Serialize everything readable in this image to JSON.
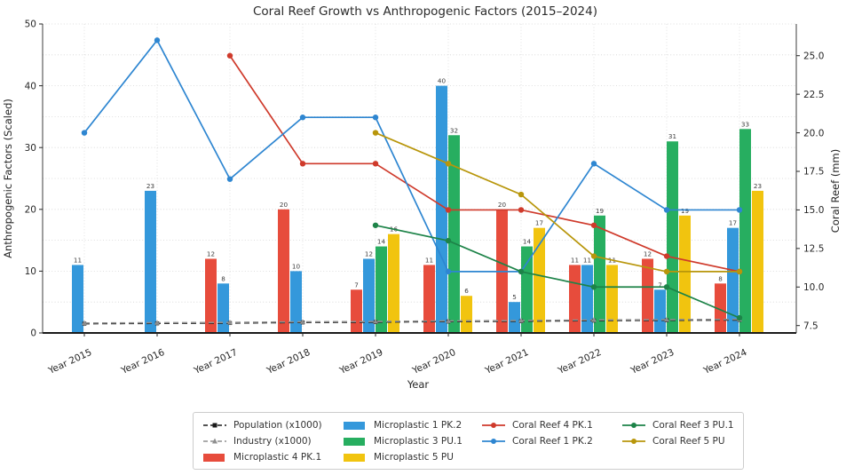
{
  "chart_data": {
    "type": "combo-bar-line",
    "title": "Coral Reef Growth vs Anthropogenic Factors (2015–2024)",
    "xlabel": "Year",
    "ylabel_left": "Anthropogenic Factors (Scaled)",
    "ylabel_right": "Coral Reef (mm)",
    "categories": [
      "Year 2015",
      "Year 2016",
      "Year 2017",
      "Year 2018",
      "Year 2019",
      "Year 2020",
      "Year 2021",
      "Year 2022",
      "Year 2023",
      "Year 2024"
    ],
    "left_axis": {
      "min": 0,
      "max": 50,
      "ticks": [
        0,
        10,
        20,
        30,
        40,
        50
      ],
      "grid_step": 5
    },
    "right_axis": {
      "ticks": [
        7.5,
        10.0,
        12.5,
        15.0,
        17.5,
        20.0,
        22.5,
        25.0
      ]
    },
    "grid": true,
    "legend_position": "bottom-center",
    "bar_series": [
      {
        "name": "Microplastic 4 PK.1",
        "color": "#e74c3c",
        "axis": "left",
        "values": [
          null,
          null,
          12,
          20,
          7,
          11,
          20,
          11,
          12,
          8
        ]
      },
      {
        "name": "Microplastic 1 PK.2",
        "color": "#3498db",
        "axis": "left",
        "values": [
          11,
          23,
          8,
          10,
          12,
          40,
          5,
          11,
          7,
          17
        ]
      },
      {
        "name": "Microplastic 3 PU.1",
        "color": "#27ae60",
        "axis": "left",
        "values": [
          null,
          null,
          null,
          null,
          14,
          32,
          14,
          19,
          31,
          33
        ]
      },
      {
        "name": "Microplastic 5 PU",
        "color": "#f1c40f",
        "axis": "left",
        "values": [
          null,
          null,
          null,
          null,
          16,
          6,
          17,
          11,
          19,
          23
        ]
      }
    ],
    "line_series": [
      {
        "name": "Coral Reef 4 PK.1",
        "color": "#cf3a2b",
        "axis": "right",
        "marker": "circle",
        "values": [
          null,
          null,
          25,
          18,
          18,
          15,
          15,
          14,
          12,
          11
        ]
      },
      {
        "name": "Coral Reef 1 PK.2",
        "color": "#2e86d1",
        "axis": "right",
        "marker": "circle",
        "values": [
          20,
          26,
          17,
          21,
          21,
          11,
          11,
          18,
          15,
          15
        ]
      },
      {
        "name": "Coral Reef 3 PU.1",
        "color": "#1d8348",
        "axis": "right",
        "marker": "circle",
        "values": [
          null,
          null,
          null,
          null,
          14,
          13,
          11,
          10,
          10,
          8
        ]
      },
      {
        "name": "Coral Reef 5 PU",
        "color": "#b8960b",
        "axis": "right",
        "marker": "circle",
        "values": [
          null,
          null,
          null,
          null,
          20,
          18,
          16,
          12,
          11,
          11
        ]
      }
    ],
    "scaled_lines": [
      {
        "name": "Population (x1000)",
        "color": "#1a1a1a",
        "axis": "left",
        "marker": "square",
        "dashed": true,
        "values": [
          1.5,
          1.55,
          1.6,
          1.7,
          1.75,
          1.85,
          1.9,
          2.0,
          2.05,
          2.1
        ]
      },
      {
        "name": "Industry (x1000)",
        "color": "#8f8f8f",
        "axis": "left",
        "marker": "triangle",
        "dashed": true,
        "values": [
          1.6,
          1.65,
          1.7,
          1.8,
          1.85,
          1.95,
          2.0,
          2.1,
          2.15,
          2.2
        ]
      }
    ],
    "legend": {
      "items": [
        {
          "label": "Population (x1000)",
          "color": "#1a1a1a",
          "swatch": "dash-square",
          "col": 1,
          "row": 1
        },
        {
          "label": "Industry (x1000)",
          "color": "#8f8f8f",
          "swatch": "dash-triangle",
          "col": 1,
          "row": 2
        },
        {
          "label": "Microplastic 4 PK.1",
          "color": "#e74c3c",
          "swatch": "rect",
          "col": 1,
          "row": 3
        },
        {
          "label": "Microplastic 1 PK.2",
          "color": "#3498db",
          "swatch": "rect",
          "col": 2,
          "row": 1
        },
        {
          "label": "Microplastic 3 PU.1",
          "color": "#27ae60",
          "swatch": "rect",
          "col": 2,
          "row": 2
        },
        {
          "label": "Microplastic 5 PU",
          "color": "#f1c40f",
          "swatch": "rect",
          "col": 2,
          "row": 3
        },
        {
          "label": "Coral Reef 4 PK.1",
          "color": "#cf3a2b",
          "swatch": "line-dot",
          "col": 3,
          "row": 1
        },
        {
          "label": "Coral Reef 1 PK.2",
          "color": "#2e86d1",
          "swatch": "line-dot",
          "col": 3,
          "row": 2
        },
        {
          "label": "Coral Reef 3 PU.1",
          "color": "#1d8348",
          "swatch": "line-dot",
          "col": 4,
          "row": 1
        },
        {
          "label": "Coral Reef 5 PU",
          "color": "#b8960b",
          "swatch": "line-dot",
          "col": 4,
          "row": 2
        }
      ]
    }
  }
}
